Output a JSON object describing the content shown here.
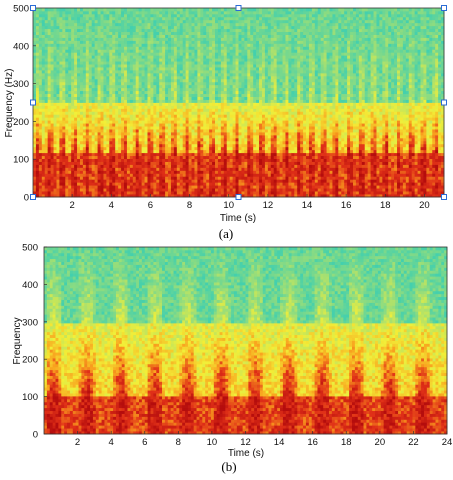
{
  "colors": {
    "low": "#3fcfb0",
    "mid_low": "#a8e070",
    "mid": "#f2ef38",
    "mid_high": "#f9a21e",
    "high": "#e03018",
    "peak": "#b50d0d",
    "marker": "#2b6cd6"
  },
  "chart_data": [
    {
      "type": "heatmap",
      "caption": "(a)",
      "xlabel": "Time (s)",
      "ylabel": "Frequency (Hz)",
      "xlim": [
        0,
        21
      ],
      "ylim": [
        0,
        500
      ],
      "xticks": [
        2,
        4,
        6,
        8,
        10,
        12,
        14,
        16,
        18,
        20
      ],
      "yticks": [
        0,
        100,
        200,
        300,
        400,
        500
      ],
      "pulse_count": 33,
      "high_energy_band": [
        0,
        250
      ],
      "strong_band": [
        0,
        120
      ],
      "grid": false,
      "selection_markers": true
    },
    {
      "type": "heatmap",
      "caption": "(b)",
      "xlabel": "Time (s)",
      "ylabel": "Frequency",
      "xlim": [
        0,
        24
      ],
      "ylim": [
        0,
        500
      ],
      "xticks": [
        2,
        4,
        6,
        8,
        10,
        12,
        14,
        16,
        18,
        20,
        22,
        24
      ],
      "yticks": [
        0,
        100,
        200,
        300,
        400,
        500
      ],
      "pulse_count": 12,
      "high_energy_band": [
        0,
        300
      ],
      "strong_band": [
        0,
        100
      ],
      "grid": false,
      "selection_markers": false
    }
  ]
}
